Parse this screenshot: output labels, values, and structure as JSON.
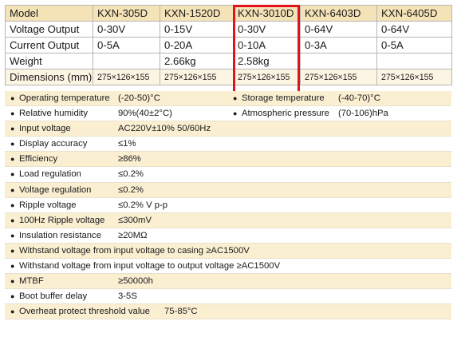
{
  "models_table": {
    "headers": [
      "Model",
      "KXN-305D",
      "KXN-1520D",
      "KXN-3010D",
      "KXN-6403D",
      "KXN-6405D"
    ],
    "rows": [
      {
        "label": "Voltage Output",
        "values": [
          "0-30V",
          "0-15V",
          "0-30V",
          "0-64V",
          "0-64V"
        ]
      },
      {
        "label": "Current Output",
        "values": [
          "0-5A",
          "0-20A",
          "0-10A",
          "0-3A",
          "0-5A"
        ]
      },
      {
        "label": "Weight",
        "values": [
          "",
          "2.66kg",
          "2.58kg",
          "",
          ""
        ]
      },
      {
        "label": "Dimensions (mm)",
        "values": [
          "275×126×155",
          "275×126×155",
          "275×126×155",
          "275×126×155",
          "275×126×155"
        ]
      }
    ],
    "highlighted_model": "KXN-3010D",
    "highlight_color": "#e0141a",
    "header_color": "#f5e3b8"
  },
  "parameters": [
    {
      "label": "Operating temperature",
      "value": "(-20-50)°C",
      "label2": "Storage temperature",
      "value2": "(-40-70)°C"
    },
    {
      "label": "Relative humidity",
      "value": "90%(40±2°C)",
      "label2": "Atmospheric pressure",
      "value2": "(70-106)hPa"
    },
    {
      "label": "Input voltage",
      "value": "AC220V±10%  50/60Hz"
    },
    {
      "label": "Display accuracy",
      "value": "≤1%"
    },
    {
      "label": "Efficiency",
      "value": "≥86%"
    },
    {
      "label": "Load regulation",
      "value": "≤0.2%"
    },
    {
      "label": "Voltage regulation",
      "value": "≤0.2%"
    },
    {
      "label": "Ripple voltage",
      "value": "≤0.2% V p-p"
    },
    {
      "label": "100Hz Ripple voltage",
      "value": "≤300mV"
    },
    {
      "label": "Insulation resistance",
      "value": "≥20MΩ"
    },
    {
      "label": "Withstand voltage from input voltage to casing ≥AC1500V",
      "value": ""
    },
    {
      "label": "Withstand voltage from input voltage to output voltage ≥AC1500V",
      "value": ""
    },
    {
      "label": "MTBF",
      "value": "≥50000h"
    },
    {
      "label": "Boot buffer delay",
      "value": "3-5S"
    },
    {
      "label": "Overheat protect threshold value",
      "value": "75-85°C"
    }
  ],
  "bullet_char": "●",
  "stripe_color": "#fbefd2"
}
